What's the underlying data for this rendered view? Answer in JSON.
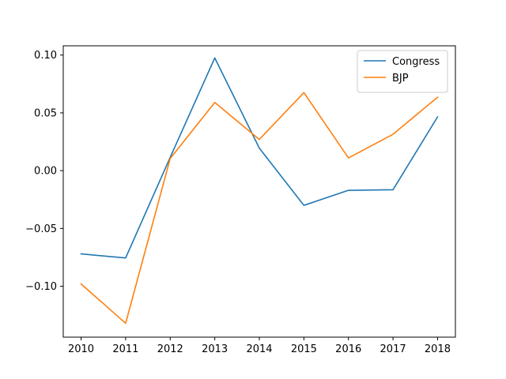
{
  "chart_data": {
    "type": "line",
    "title": "",
    "xlabel": "",
    "ylabel": "",
    "x": [
      2010,
      2011,
      2012,
      2013,
      2014,
      2015,
      2016,
      2017,
      2018
    ],
    "xticks": [
      "2010",
      "2011",
      "2012",
      "2013",
      "2014",
      "2015",
      "2016",
      "2017",
      "2018"
    ],
    "yticks": [
      -0.1,
      -0.05,
      0.0,
      0.05,
      0.1
    ],
    "ytick_labels": [
      "−0.10",
      "−0.05",
      "0.00",
      "0.05",
      "0.10"
    ],
    "xlim": [
      2009.6,
      2018.4
    ],
    "ylim": [
      -0.144,
      0.108
    ],
    "grid": false,
    "legend_position": "top-right",
    "series": [
      {
        "name": "Congress",
        "color": "#1f77b4",
        "values": [
          -0.072,
          -0.0755,
          0.0115,
          0.0975,
          0.0195,
          -0.03,
          -0.017,
          -0.0165,
          0.0465
        ]
      },
      {
        "name": "BJP",
        "color": "#ff7f0e",
        "values": [
          -0.098,
          -0.132,
          0.0105,
          0.059,
          0.027,
          0.0675,
          0.011,
          0.0315,
          0.0635
        ]
      }
    ]
  }
}
